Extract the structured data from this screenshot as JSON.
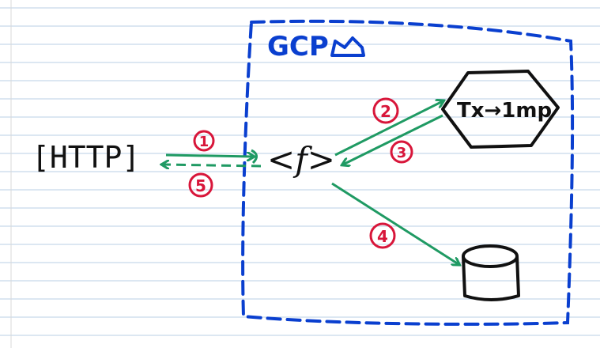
{
  "diagram": {
    "cloud_label": "GCP",
    "http_label": "[HTTP]",
    "function_label": "<f>",
    "transform_label": "Tx→1mp",
    "colors": {
      "paper_line": "#b9cfe6",
      "margin_line": "#d9d9d9",
      "ink_black": "#111111",
      "ink_blue": "#0a3fcf",
      "ink_green": "#1f9a63",
      "ink_red": "#d8163a"
    },
    "steps": [
      {
        "number": "1"
      },
      {
        "number": "2"
      },
      {
        "number": "3"
      },
      {
        "number": "4"
      },
      {
        "number": "5"
      }
    ]
  }
}
